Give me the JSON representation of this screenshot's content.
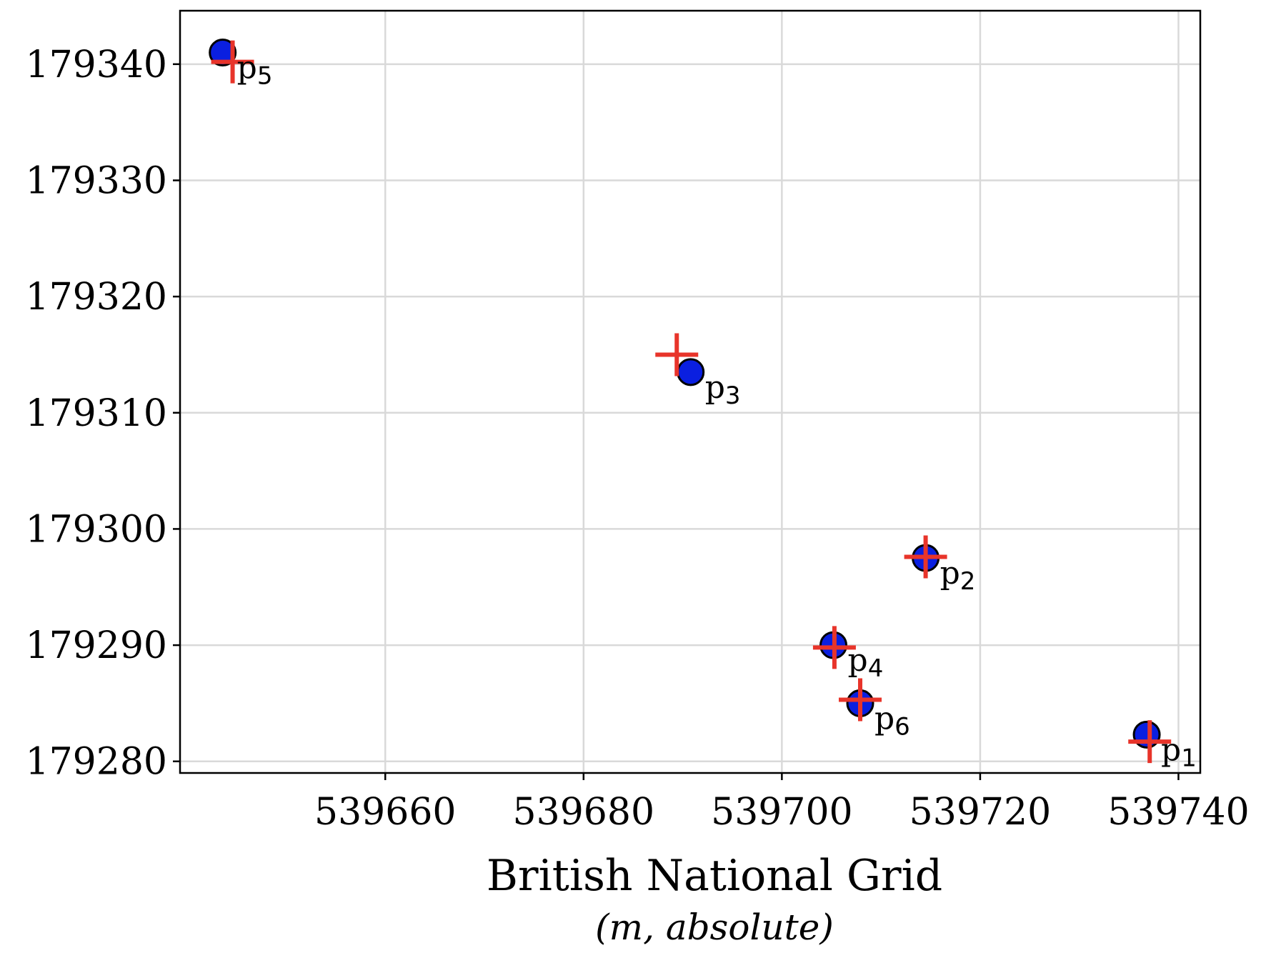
{
  "chart_data": {
    "type": "scatter",
    "title": "",
    "xlabel": "British National Grid",
    "xlabel_sub": "(m, absolute)",
    "ylabel": "",
    "xlim": [
      539639.3,
      539742.2
    ],
    "ylim": [
      179279.0,
      179344.6
    ],
    "xticks": [
      539660,
      539680,
      539700,
      539720,
      539740
    ],
    "yticks": [
      179280,
      179290,
      179300,
      179310,
      179320,
      179330,
      179340
    ],
    "grid": true,
    "legend": "none",
    "colors": {
      "marker_fill": "#0a1fe0",
      "marker_edge": "#000000",
      "cross": "#e8342a",
      "grid": "#d9d9d9",
      "axes": "#000000"
    },
    "series": [
      {
        "marker": "circle",
        "points": [
          {
            "x": 539736.8,
            "y": 179282.3
          },
          {
            "x": 539714.5,
            "y": 179297.5
          },
          {
            "x": 539690.8,
            "y": 179313.5
          },
          {
            "x": 539705.2,
            "y": 179290.0
          },
          {
            "x": 539643.6,
            "y": 179341.0
          },
          {
            "x": 539707.9,
            "y": 179285.0
          }
        ]
      },
      {
        "marker": "cross",
        "points": [
          {
            "x": 539737.1,
            "y": 179281.7
          },
          {
            "x": 539714.5,
            "y": 179297.6
          },
          {
            "x": 539689.4,
            "y": 179315.0
          },
          {
            "x": 539705.3,
            "y": 179289.8
          },
          {
            "x": 539644.6,
            "y": 179340.2
          },
          {
            "x": 539707.9,
            "y": 179285.3
          }
        ]
      }
    ],
    "annotations": [
      {
        "base": "p",
        "sub": "1",
        "x": 539736.8,
        "y": 179282.3
      },
      {
        "base": "p",
        "sub": "2",
        "x": 539714.5,
        "y": 179297.5
      },
      {
        "base": "p",
        "sub": "3",
        "x": 539690.8,
        "y": 179313.5
      },
      {
        "base": "p",
        "sub": "4",
        "x": 539705.2,
        "y": 179290.0
      },
      {
        "base": "p",
        "sub": "5",
        "x": 539643.6,
        "y": 179341.0
      },
      {
        "base": "p",
        "sub": "6",
        "x": 539707.9,
        "y": 179285.0
      }
    ]
  }
}
